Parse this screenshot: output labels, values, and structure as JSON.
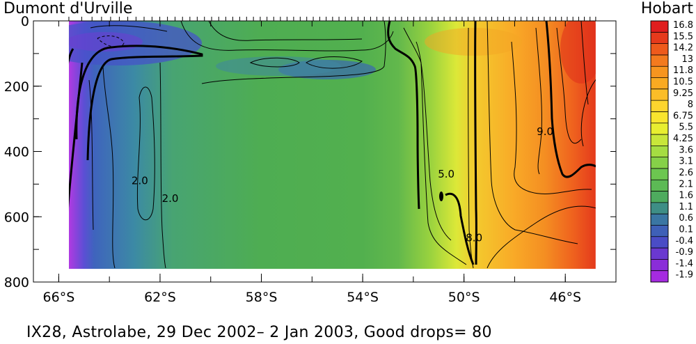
{
  "header": {
    "left_label": "Dumont d'Urville",
    "right_label": "Hobart"
  },
  "caption": "IX28, Astrolabe, 29 Dec 2002– 2 Jan 2003, Good drops= 80",
  "chart_data": {
    "type": "heatmap",
    "x_axis": {
      "range_lat": [
        -67,
        -44
      ],
      "ticks": [
        {
          "value": -66,
          "label": "66°S"
        },
        {
          "value": -62,
          "label": "62°S"
        },
        {
          "value": -58,
          "label": "58°S"
        },
        {
          "value": -54,
          "label": "54°S"
        },
        {
          "value": -50,
          "label": "50°S"
        },
        {
          "value": -46,
          "label": "46°S"
        }
      ],
      "minor_step": 2
    },
    "y_axis": {
      "range": [
        0,
        800
      ],
      "inverted": true,
      "ticks": [
        {
          "value": 0,
          "label": "0"
        },
        {
          "value": 200,
          "label": "200"
        },
        {
          "value": 400,
          "label": "400"
        },
        {
          "value": 600,
          "label": "600"
        },
        {
          "value": 800,
          "label": "800"
        }
      ],
      "minor_step": 100
    },
    "data_extent": {
      "lat": [
        -65.6,
        -44.8
      ],
      "depth": [
        0,
        760
      ]
    },
    "colorbar": {
      "levels": [
        "16.8",
        "15.5",
        "14.2",
        "13",
        "11.8",
        "10.5",
        "9.25",
        "8",
        "6.75",
        "5.5",
        "4.25",
        "3.6",
        "3.1",
        "2.6",
        "2.1",
        "1.6",
        "1.1",
        "0.6",
        "0.1",
        "-0.4",
        "-0.9",
        "-1.4",
        "-1.9"
      ],
      "colors": [
        "#e01e1e",
        "#e63a1c",
        "#ee5a1c",
        "#f37a1e",
        "#f7951f",
        "#f9aa22",
        "#fbbd28",
        "#fdd52e",
        "#f9e52e",
        "#e8ee30",
        "#c8e63a",
        "#a5dd42",
        "#86d148",
        "#6cc650",
        "#5cba55",
        "#4eab5e",
        "#3e8e86",
        "#3a76a3",
        "#3e60b7",
        "#4a4cc6",
        "#6a38d0",
        "#8a2dd8",
        "#a52be0"
      ]
    },
    "profile_colors": [
      {
        "lat": -65.6,
        "color": "#b13ae2"
      },
      {
        "lat": -65.0,
        "color": "#5b4fd4"
      },
      {
        "lat": -64.6,
        "color": "#3f64bd"
      },
      {
        "lat": -63.0,
        "color": "#3c8aa4"
      },
      {
        "lat": -61.5,
        "color": "#48a472"
      },
      {
        "lat": -58.0,
        "color": "#4ead52"
      },
      {
        "lat": -54.0,
        "color": "#52b04e"
      },
      {
        "lat": -52.6,
        "color": "#62b84c"
      },
      {
        "lat": -51.3,
        "color": "#9bd33e"
      },
      {
        "lat": -50.3,
        "color": "#dce838"
      },
      {
        "lat": -49.6,
        "color": "#f3cb2e"
      },
      {
        "lat": -48.0,
        "color": "#f9a927"
      },
      {
        "lat": -46.8,
        "color": "#f48e22"
      },
      {
        "lat": -45.7,
        "color": "#ef621e"
      },
      {
        "lat": -44.8,
        "color": "#e43a1c"
      }
    ],
    "contour_labels": [
      {
        "text": "2.0",
        "lat": -62.8,
        "depth": 500
      },
      {
        "text": "2.0",
        "lat": -61.6,
        "depth": 555
      },
      {
        "text": "5.0",
        "lat": -50.7,
        "depth": 480
      },
      {
        "text": "8.0",
        "lat": -49.6,
        "depth": 675
      },
      {
        "text": "9.0",
        "lat": -46.8,
        "depth": 350
      }
    ],
    "drop_count": 80
  }
}
